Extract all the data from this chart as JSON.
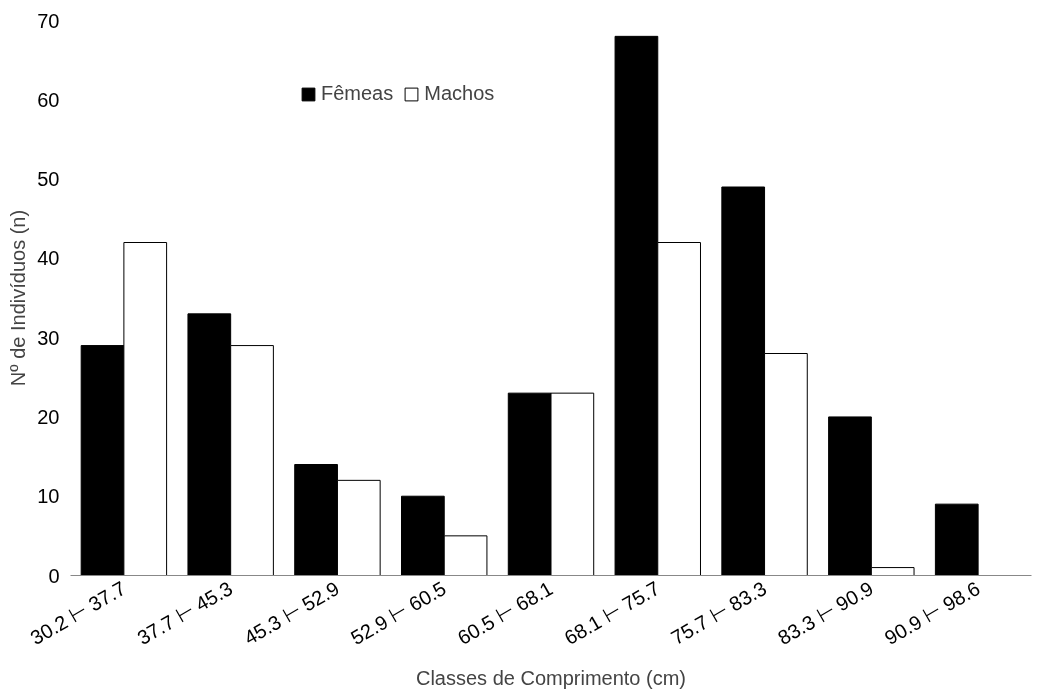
{
  "chart_data": {
    "type": "bar",
    "xlabel": "Classes de Comprimento (cm)",
    "ylabel": "Nº de Indivíduos (n)",
    "categories": [
      "30.2 ⊢ 37.7",
      "37.7 ⊢ 45.3",
      "45.3 ⊢ 52.9",
      "52.9 ⊢ 60.5",
      "60.5 ⊢ 68.1",
      "68.1 ⊢ 75.7",
      "75.7 ⊢ 83.3",
      "83.3 ⊢ 90.9",
      "90.9 ⊢ 98.6"
    ],
    "series": [
      {
        "name": "Fêmeas",
        "color": "#000000",
        "values": [
          29,
          33,
          14,
          10,
          23,
          68,
          49,
          20,
          9
        ]
      },
      {
        "name": "Machos",
        "color": "#ffffff",
        "values": [
          42,
          29,
          12,
          5,
          23,
          42,
          28,
          1,
          null
        ]
      }
    ],
    "ylim": [
      0,
      70
    ],
    "yticks": [
      0,
      10,
      20,
      30,
      40,
      50,
      60,
      70
    ],
    "grid": false,
    "legend": "top"
  }
}
